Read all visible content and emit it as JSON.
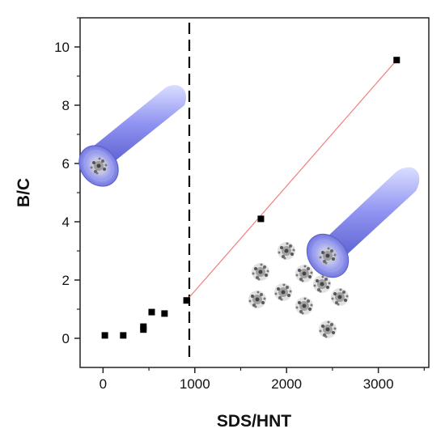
{
  "chart_data": {
    "type": "scatter",
    "xlabel": "SDS/HNT",
    "ylabel": "B/C",
    "xlim": [
      -250,
      3550
    ],
    "ylim": [
      -1.0,
      11.0
    ],
    "x_ticks": [
      0,
      1000,
      2000,
      3000
    ],
    "y_ticks": [
      0,
      2,
      4,
      6,
      8,
      10
    ],
    "grid": false,
    "legend": "none",
    "series": [
      {
        "marker": "square",
        "color": "#000000",
        "points": [
          {
            "x": 20,
            "y": 0.1
          },
          {
            "x": 220,
            "y": 0.1
          },
          {
            "x": 440,
            "y": 0.3
          },
          {
            "x": 440,
            "y": 0.4
          },
          {
            "x": 530,
            "y": 0.9
          },
          {
            "x": 670,
            "y": 0.85
          },
          {
            "x": 910,
            "y": 1.3
          },
          {
            "x": 1720,
            "y": 4.1
          },
          {
            "x": 3200,
            "y": 9.55
          }
        ]
      }
    ],
    "fit_line": {
      "color": "#f08080",
      "points": [
        {
          "x": 910,
          "y": 1.3
        },
        {
          "x": 3200,
          "y": 9.55
        }
      ]
    },
    "threshold_line": {
      "x": 940,
      "style": "dashed",
      "color": "#000000"
    },
    "illustrations": [
      "halloysite-tube-with-micelles",
      "halloysite-tube-with-free-micelles"
    ]
  }
}
